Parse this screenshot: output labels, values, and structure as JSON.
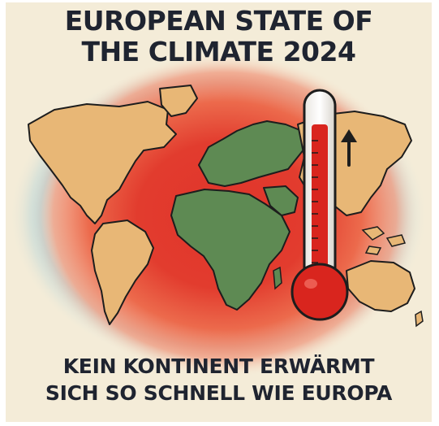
{
  "poster": {
    "title_line1": "EUROPEAN STATE OF",
    "title_line2": "THE CLIMATE 2024",
    "subtitle_line1": "KEIN KONTINENT ERWÄRMT",
    "subtitle_line2": "SICH SO SCHNELL WIE EUROPA"
  },
  "colors": {
    "background": "#f4ecd8",
    "heat_core": "#e0342b",
    "heat_outer": "#f08a6a",
    "land": "#e8b776",
    "africa_europe": "#5e8a53",
    "ocean_edge": "#a8cfd8",
    "mercury": "#d9251e",
    "text": "#1f2430"
  },
  "icons": [
    "thermometer-icon",
    "arrow-up-icon"
  ]
}
